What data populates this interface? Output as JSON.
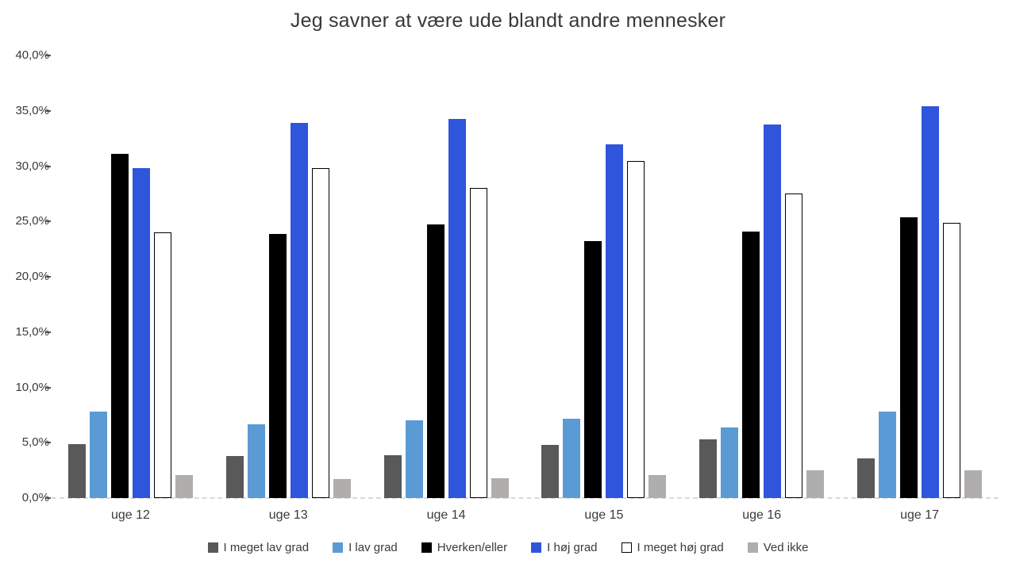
{
  "title": "Jeg savner at være ude blandt andre mennesker",
  "chart_data": {
    "type": "bar",
    "title": "Jeg savner at være ude blandt andre mennesker",
    "categories": [
      "uge 12",
      "uge 13",
      "uge 14",
      "uge 15",
      "uge 16",
      "uge 17"
    ],
    "series": [
      {
        "name": "I meget lav grad",
        "color": "#595959",
        "pattern": "dots",
        "values": [
          4.9,
          3.8,
          3.9,
          4.8,
          5.3,
          3.6
        ]
      },
      {
        "name": "I lav grad",
        "color": "#5B9BD5",
        "values": [
          7.8,
          6.7,
          7.0,
          7.2,
          6.4,
          7.8
        ]
      },
      {
        "name": "Hverken/eller",
        "color": "#000000",
        "values": [
          31.1,
          23.9,
          24.7,
          23.2,
          24.1,
          25.4
        ]
      },
      {
        "name": "I høj grad",
        "color": "#2F55DC",
        "values": [
          29.8,
          33.9,
          34.3,
          32.0,
          33.8,
          35.4
        ]
      },
      {
        "name": "I meget høj grad",
        "color": "#FFFFFF",
        "border": "#000000",
        "values": [
          24.0,
          29.8,
          28.0,
          30.5,
          27.5,
          24.9
        ]
      },
      {
        "name": "Ved ikke",
        "color": "#B0ADAD",
        "values": [
          2.1,
          1.7,
          1.8,
          2.1,
          2.5,
          2.5
        ]
      }
    ],
    "ylim": [
      0,
      40
    ],
    "ytick_labels": [
      "0,0%",
      "5,0%",
      "10,0%",
      "15,0%",
      "20,0%",
      "25,0%",
      "30,0%",
      "35,0%",
      "40,0%"
    ],
    "xlabel": "",
    "ylabel": "",
    "grid": false,
    "legend_position": "bottom",
    "axis_line_color": "#d9d9d9",
    "tick_color": "#595959"
  }
}
